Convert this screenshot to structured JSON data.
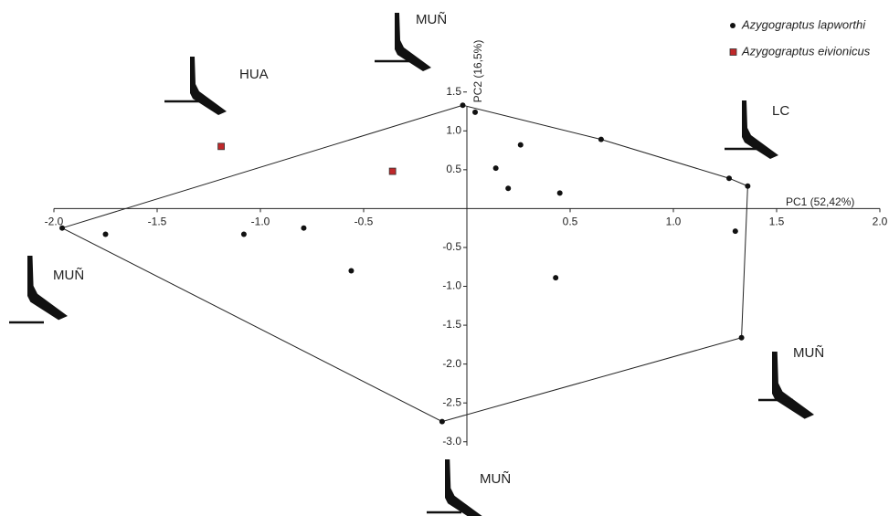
{
  "chart_data": {
    "type": "scatter",
    "x_label": "PC1 (52,42%)",
    "y_label": "PC2 (16,5%)",
    "xlim": [
      -2.0,
      2.0
    ],
    "ylim": [
      -3.05,
      1.45
    ],
    "xticks": [
      {
        "value": -2.0,
        "label": "-2.0"
      },
      -1.5,
      {
        "value": -1.0,
        "label": "-1.0"
      },
      -0.5,
      0.5,
      {
        "value": 1.0,
        "label": "1.0"
      },
      1.5,
      {
        "value": 2.0,
        "label": "2.0"
      }
    ],
    "yticks": [
      1.5,
      {
        "value": 1.0,
        "label": "1.0"
      },
      0.5,
      -0.5,
      {
        "value": -1.0,
        "label": "-1.0"
      },
      -1.5,
      {
        "value": -2.0,
        "label": "-2.0"
      },
      -2.5,
      {
        "value": -3.0,
        "label": "-3.0"
      }
    ],
    "legend": "top-right",
    "series": [
      {
        "name": "Azygograptus lapworthi",
        "color": "#111111",
        "marker": "circle",
        "x": [
          -1.96,
          -1.75,
          -1.08,
          -0.79,
          -0.56,
          -0.12,
          -0.02,
          0.04,
          0.26,
          0.14,
          0.2,
          0.45,
          0.43,
          0.65,
          1.27,
          1.36,
          1.3,
          1.33
        ],
        "values": [
          -0.25,
          -0.33,
          -0.33,
          -0.25,
          -0.8,
          -2.74,
          1.33,
          1.24,
          0.82,
          0.52,
          0.26,
          0.2,
          -0.89,
          0.89,
          0.39,
          0.29,
          -0.29,
          -1.66
        ]
      },
      {
        "name": "Azygograptus eivionicus",
        "color": "#c0282a",
        "marker": "square",
        "x": [
          -1.19,
          -0.36
        ],
        "values": [
          0.8,
          0.48
        ]
      }
    ],
    "annotations": [
      "MUÑ",
      "HUA",
      "LC",
      "MUÑ",
      "MUÑ",
      "MUÑ"
    ]
  }
}
